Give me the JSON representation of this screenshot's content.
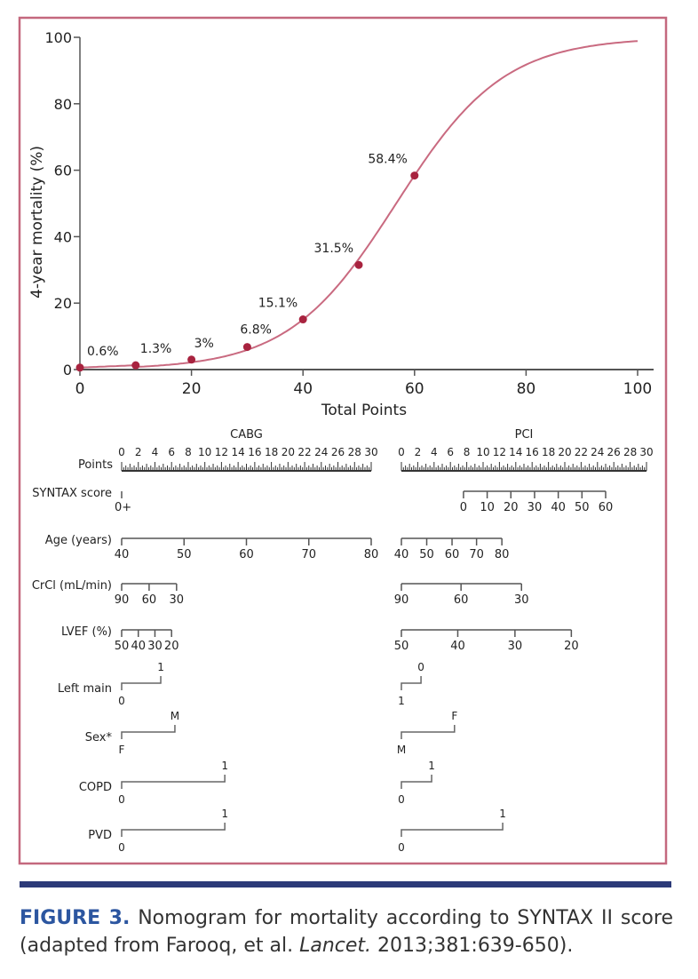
{
  "colors": {
    "frame": "#c4687e",
    "curve": "#c96a80",
    "point": "#a8233f",
    "rule": "#2c3a78",
    "figure_label": "#2c56a0"
  },
  "chart_data": [
    {
      "type": "line",
      "xlabel": "Total Points",
      "ylabel": "4-year mortality (%)",
      "xlim": [
        0,
        100
      ],
      "ylim": [
        0,
        100
      ],
      "xticks": [
        0,
        20,
        40,
        60,
        80,
        100
      ],
      "yticks": [
        0,
        20,
        40,
        60,
        80,
        100
      ],
      "grid": false,
      "points": [
        {
          "x": 0,
          "y": 0.6,
          "label": "0.6%"
        },
        {
          "x": 10,
          "y": 1.3,
          "label": "1.3%"
        },
        {
          "x": 20,
          "y": 3,
          "label": "3%"
        },
        {
          "x": 30,
          "y": 6.8,
          "label": "6.8%"
        },
        {
          "x": 40,
          "y": 15.1,
          "label": "15.1%"
        },
        {
          "x": 50,
          "y": 31.5,
          "label": "31.5%"
        },
        {
          "x": 60,
          "y": 58.4,
          "label": "58.4%"
        }
      ]
    },
    {
      "type": "nomogram",
      "panels": [
        "CABG",
        "PCI"
      ],
      "points_label": "Points",
      "points_range": [
        0,
        30
      ],
      "points_ticks": [
        "0",
        "2",
        "4",
        "6",
        "8",
        "10",
        "12",
        "14",
        "16",
        "18",
        "20",
        "22",
        "24",
        "26",
        "28",
        "30"
      ],
      "rows": [
        {
          "label": "SYNTAX score",
          "CABG": {
            "kind": "single",
            "ticks": [
              {
                "t": "0+",
                "p": 0
              }
            ]
          },
          "PCI": {
            "kind": "scale",
            "ticks": [
              {
                "t": "0",
                "p": 7.6
              },
              {
                "t": "10",
                "p": 10.5
              },
              {
                "t": "20",
                "p": 13.4
              },
              {
                "t": "30",
                "p": 16.3
              },
              {
                "t": "40",
                "p": 19.2
              },
              {
                "t": "50",
                "p": 22.1
              },
              {
                "t": "60",
                "p": 25
              }
            ]
          }
        },
        {
          "label": "Age (years)",
          "CABG": {
            "kind": "scale",
            "ticks": [
              {
                "t": "40",
                "p": 0
              },
              {
                "t": "50",
                "p": 7.5
              },
              {
                "t": "60",
                "p": 15
              },
              {
                "t": "70",
                "p": 22.5
              },
              {
                "t": "80",
                "p": 30
              }
            ]
          },
          "PCI": {
            "kind": "scale",
            "ticks": [
              {
                "t": "40",
                "p": 0
              },
              {
                "t": "50",
                "p": 3.1
              },
              {
                "t": "60",
                "p": 6.2
              },
              {
                "t": "70",
                "p": 9.2
              },
              {
                "t": "80",
                "p": 12.3
              }
            ]
          }
        },
        {
          "label": "CrCl (mL/min)",
          "CABG": {
            "kind": "scale",
            "ticks": [
              {
                "t": "90",
                "p": 0
              },
              {
                "t": "60",
                "p": 3.3
              },
              {
                "t": "30",
                "p": 6.6
              }
            ]
          },
          "PCI": {
            "kind": "scale",
            "ticks": [
              {
                "t": "90",
                "p": 0
              },
              {
                "t": "60",
                "p": 7.3
              },
              {
                "t": "30",
                "p": 14.7
              }
            ]
          }
        },
        {
          "label": "LVEF (%)",
          "CABG": {
            "kind": "scale",
            "ticks": [
              {
                "t": "50",
                "p": 0
              },
              {
                "t": "40",
                "p": 2
              },
              {
                "t": "30",
                "p": 4
              },
              {
                "t": "20",
                "p": 6
              }
            ]
          },
          "PCI": {
            "kind": "scale",
            "ticks": [
              {
                "t": "50",
                "p": 0
              },
              {
                "t": "40",
                "p": 6.9
              },
              {
                "t": "30",
                "p": 13.9
              },
              {
                "t": "20",
                "p": 20.8
              }
            ]
          }
        },
        {
          "label": "Left main",
          "CABG": {
            "kind": "binary",
            "ticks": [
              {
                "t": "0",
                "p": 0
              },
              {
                "t": "1",
                "p": 4.7
              }
            ]
          },
          "PCI": {
            "kind": "binary",
            "ticks": [
              {
                "t": "1",
                "p": 0
              },
              {
                "t": "0",
                "p": 2.4
              }
            ]
          }
        },
        {
          "label": "Sex*",
          "CABG": {
            "kind": "binary",
            "ticks": [
              {
                "t": "F",
                "p": 0
              },
              {
                "t": "M",
                "p": 6.4
              }
            ]
          },
          "PCI": {
            "kind": "binary",
            "ticks": [
              {
                "t": "M",
                "p": 0
              },
              {
                "t": "F",
                "p": 6.5
              }
            ]
          }
        },
        {
          "label": "COPD",
          "CABG": {
            "kind": "binary",
            "ticks": [
              {
                "t": "0",
                "p": 0
              },
              {
                "t": "1",
                "p": 12.4
              }
            ]
          },
          "PCI": {
            "kind": "binary",
            "ticks": [
              {
                "t": "0",
                "p": 0
              },
              {
                "t": "1",
                "p": 3.7
              }
            ]
          }
        },
        {
          "label": "PVD",
          "CABG": {
            "kind": "binary",
            "ticks": [
              {
                "t": "0",
                "p": 0
              },
              {
                "t": "1",
                "p": 12.4
              }
            ]
          },
          "PCI": {
            "kind": "binary",
            "ticks": [
              {
                "t": "0",
                "p": 0
              },
              {
                "t": "1",
                "p": 12.4
              }
            ]
          }
        }
      ]
    }
  ],
  "caption": {
    "figure_label": "FIGURE 3.",
    "text_1": " Nomogram for mortality according to SYNTAX II score (adapted from Farooq, et al. ",
    "journal": "Lancet.",
    "text_2": " 2013;381:639-650)."
  }
}
